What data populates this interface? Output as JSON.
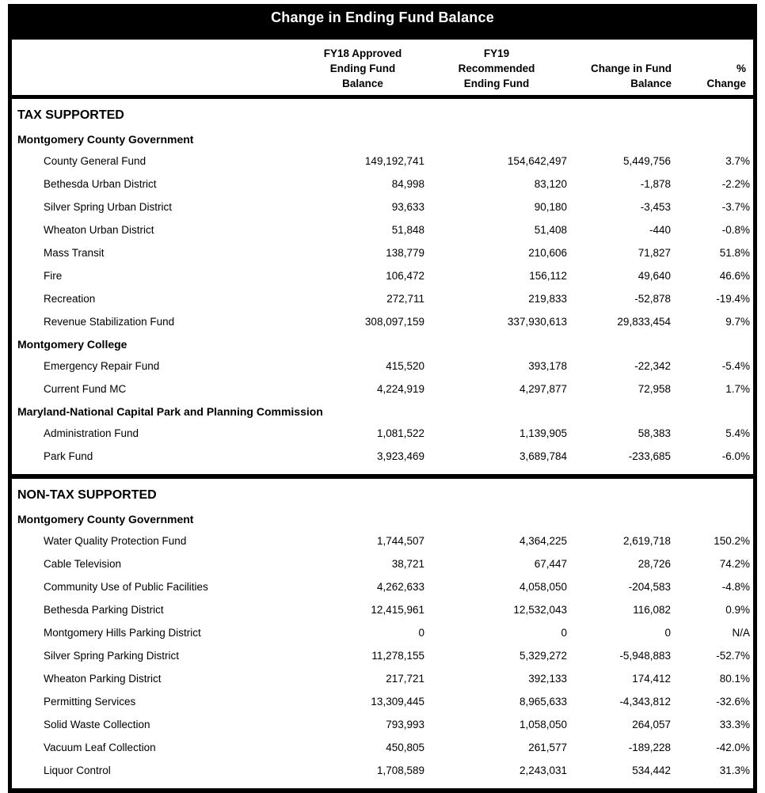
{
  "title": "Change in Ending Fund Balance",
  "columns": [
    {
      "id": "fund",
      "lines": []
    },
    {
      "id": "fy18",
      "lines": [
        "FY18 Approved",
        "Ending Fund",
        "Balance"
      ]
    },
    {
      "id": "fy19",
      "lines": [
        "FY19",
        "Recommended",
        "Ending Fund"
      ]
    },
    {
      "id": "change",
      "lines": [
        "Change in Fund",
        "Balance"
      ]
    },
    {
      "id": "pct",
      "lines": [
        "%",
        "Change"
      ]
    }
  ],
  "colors": {
    "title_bar_bg": "#000000",
    "title_text": "#ffffff",
    "border": "#000000",
    "text": "#000000"
  },
  "sections": [
    {
      "name": "TAX SUPPORTED",
      "groups": [
        {
          "name": "Montgomery County Government",
          "rows": [
            {
              "name": "County General Fund",
              "fy18": "149,192,741",
              "fy19": "154,642,497",
              "change": "5,449,756",
              "pct": "3.7%"
            },
            {
              "name": "Bethesda Urban District",
              "fy18": "84,998",
              "fy19": "83,120",
              "change": "-1,878",
              "pct": "-2.2%"
            },
            {
              "name": "Silver Spring Urban District",
              "fy18": "93,633",
              "fy19": "90,180",
              "change": "-3,453",
              "pct": "-3.7%"
            },
            {
              "name": "Wheaton Urban District",
              "fy18": "51,848",
              "fy19": "51,408",
              "change": "-440",
              "pct": "-0.8%"
            },
            {
              "name": "Mass Transit",
              "fy18": "138,779",
              "fy19": "210,606",
              "change": "71,827",
              "pct": "51.8%"
            },
            {
              "name": "Fire",
              "fy18": "106,472",
              "fy19": "156,112",
              "change": "49,640",
              "pct": "46.6%"
            },
            {
              "name": "Recreation",
              "fy18": "272,711",
              "fy19": "219,833",
              "change": "-52,878",
              "pct": "-19.4%"
            },
            {
              "name": "Revenue Stabilization Fund",
              "fy18": "308,097,159",
              "fy19": "337,930,613",
              "change": "29,833,454",
              "pct": "9.7%"
            }
          ]
        },
        {
          "name": "Montgomery College",
          "rows": [
            {
              "name": "Emergency Repair Fund",
              "fy18": "415,520",
              "fy19": "393,178",
              "change": "-22,342",
              "pct": "-5.4%"
            },
            {
              "name": "Current Fund MC",
              "fy18": "4,224,919",
              "fy19": "4,297,877",
              "change": "72,958",
              "pct": "1.7%"
            }
          ]
        },
        {
          "name": "Maryland-National Capital Park and Planning Commission",
          "rows": [
            {
              "name": "Administration Fund",
              "fy18": "1,081,522",
              "fy19": "1,139,905",
              "change": "58,383",
              "pct": "5.4%"
            },
            {
              "name": "Park Fund",
              "fy18": "3,923,469",
              "fy19": "3,689,784",
              "change": "-233,685",
              "pct": "-6.0%"
            }
          ]
        }
      ]
    },
    {
      "name": "NON-TAX SUPPORTED",
      "groups": [
        {
          "name": "Montgomery County Government",
          "rows": [
            {
              "name": "Water Quality Protection Fund",
              "fy18": "1,744,507",
              "fy19": "4,364,225",
              "change": "2,619,718",
              "pct": "150.2%"
            },
            {
              "name": "Cable Television",
              "fy18": "38,721",
              "fy19": "67,447",
              "change": "28,726",
              "pct": "74.2%"
            },
            {
              "name": "Community Use of Public Facilities",
              "fy18": "4,262,633",
              "fy19": "4,058,050",
              "change": "-204,583",
              "pct": "-4.8%"
            },
            {
              "name": "Bethesda Parking District",
              "fy18": "12,415,961",
              "fy19": "12,532,043",
              "change": "116,082",
              "pct": "0.9%"
            },
            {
              "name": "Montgomery Hills Parking District",
              "fy18": "0",
              "fy19": "0",
              "change": "0",
              "pct": "N/A"
            },
            {
              "name": "Silver Spring Parking District",
              "fy18": "11,278,155",
              "fy19": "5,329,272",
              "change": "-5,948,883",
              "pct": "-52.7%"
            },
            {
              "name": "Wheaton Parking District",
              "fy18": "217,721",
              "fy19": "392,133",
              "change": "174,412",
              "pct": "80.1%"
            },
            {
              "name": "Permitting Services",
              "fy18": "13,309,445",
              "fy19": "8,965,633",
              "change": "-4,343,812",
              "pct": "-32.6%"
            },
            {
              "name": "Solid Waste Collection",
              "fy18": "793,993",
              "fy19": "1,058,050",
              "change": "264,057",
              "pct": "33.3%"
            },
            {
              "name": "Vacuum Leaf Collection",
              "fy18": "450,805",
              "fy19": "261,577",
              "change": "-189,228",
              "pct": "-42.0%"
            },
            {
              "name": "Liquor Control",
              "fy18": "1,708,589",
              "fy19": "2,243,031",
              "change": "534,442",
              "pct": "31.3%"
            }
          ]
        }
      ]
    }
  ]
}
